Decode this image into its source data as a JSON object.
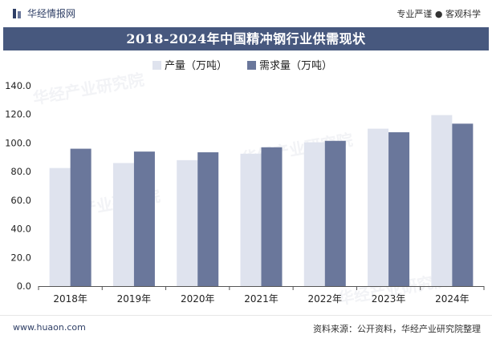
{
  "header": {
    "brand_name": "华经情报网",
    "tagline": "专业严谨 ● 客观科学"
  },
  "watermark": {
    "text": "华经产业研究院",
    "url": "www.huaon.com"
  },
  "footer": {
    "site": "www.huaon.com",
    "source": "资料来源：公开资料，华经产业研究院整理"
  },
  "colors": {
    "title_bg": "#47587e",
    "production": "#dfe3ee",
    "demand": "#6a779b",
    "brand": "#2f3f66"
  },
  "chart_data": {
    "type": "bar",
    "title": "2018-2024年中国精冲钢行业供需现状",
    "xlabel": "",
    "ylabel": "",
    "categories": [
      "2018年",
      "2019年",
      "2020年",
      "2021年",
      "2022年",
      "2023年",
      "2024年"
    ],
    "series": [
      {
        "name": "产量（万吨）",
        "values": [
          82.5,
          86.0,
          88.0,
          92.5,
          100.5,
          110.0,
          119.5
        ]
      },
      {
        "name": "需求量（万吨）",
        "values": [
          96.0,
          94.0,
          93.5,
          97.0,
          101.5,
          107.5,
          113.5
        ]
      }
    ],
    "ylim": [
      0,
      140
    ],
    "yticks": [
      "0.0",
      "20.0",
      "40.0",
      "60.0",
      "80.0",
      "100.0",
      "120.0",
      "140.0"
    ],
    "grid": false,
    "legend_position": "top-center"
  }
}
